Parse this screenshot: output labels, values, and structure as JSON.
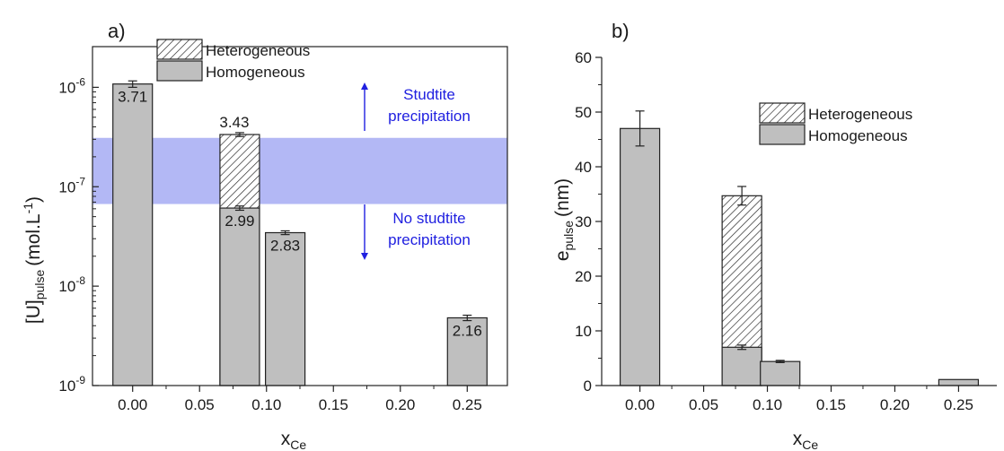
{
  "chart_data": [
    {
      "type": "bar",
      "panel_label": "a)",
      "xlabel": "x",
      "xlabel_sub": "Ce",
      "ylabel": "[U]",
      "ylabel_sub": "pulse",
      "ylabel_unit": "(mol.L",
      "ylabel_unit_sup": "-1",
      "ylabel_unit_close": ")",
      "yscale": "log",
      "xlim": [
        -0.03,
        0.28
      ],
      "ylim": [
        1e-09,
        2e-06
      ],
      "xticks": [
        0.0,
        0.05,
        0.1,
        0.15,
        0.2,
        0.25
      ],
      "xtick_labels": [
        "0.00",
        "0.05",
        "0.10",
        "0.15",
        "0.20",
        "0.25"
      ],
      "yticks": [
        {
          "base": "10",
          "exp": "-9",
          "value": 1e-09
        },
        {
          "base": "10",
          "exp": "-8",
          "value": 1e-08
        },
        {
          "base": "10",
          "exp": "-7",
          "value": 1e-07
        },
        {
          "base": "10",
          "exp": "-6",
          "value": 1e-06
        }
      ],
      "series": [
        {
          "name": "Homogeneous",
          "pattern": "solid",
          "fill": "#bfbfbf",
          "points": [
            {
              "x": 0.0,
              "y": 1.08e-06,
              "err": 8e-08,
              "label": "3.71"
            },
            {
              "x": 0.08,
              "y": 6.1e-08,
              "err": 3e-09,
              "label": "2.99"
            },
            {
              "x": 0.114,
              "y": 3.45e-08,
              "err": 1.5e-09,
              "label": "2.83"
            },
            {
              "x": 0.25,
              "y": 4.8e-09,
              "err": 3e-10,
              "label": "2.16"
            }
          ]
        },
        {
          "name": "Heterogeneous",
          "pattern": "hatched",
          "fill": "#ffffff",
          "points": [
            {
              "x": 0.08,
              "y": 3.35e-07,
              "err": 1.5e-08,
              "label": "3.43"
            }
          ]
        }
      ],
      "band": {
        "y_low": 6.7e-08,
        "y_high": 3.1e-07,
        "color": "#b3b8f5"
      },
      "annotations": [
        {
          "id": "above",
          "lines": [
            "Studtite",
            "precipitation"
          ],
          "color": "#2020e0",
          "arrow": "up"
        },
        {
          "id": "below",
          "lines": [
            "No studtite",
            "precipitation"
          ],
          "color": "#2020e0",
          "arrow": "down"
        }
      ]
    },
    {
      "type": "bar",
      "panel_label": "b)",
      "xlabel": "x",
      "xlabel_sub": "Ce",
      "ylabel": "e",
      "ylabel_sub": "pulse",
      "ylabel_unit": "(nm)",
      "yscale": "linear",
      "xlim": [
        -0.03,
        0.28
      ],
      "ylim": [
        0,
        60
      ],
      "xticks": [
        0.0,
        0.05,
        0.1,
        0.15,
        0.2,
        0.25
      ],
      "xtick_labels": [
        "0.00",
        "0.05",
        "0.10",
        "0.15",
        "0.20",
        "0.25"
      ],
      "yticks": [
        0,
        10,
        20,
        30,
        40,
        50,
        60
      ],
      "ytick_labels": [
        "0",
        "10",
        "20",
        "30",
        "40",
        "50",
        "60"
      ],
      "series": [
        {
          "name": "Homogeneous",
          "pattern": "solid",
          "fill": "#bfbfbf",
          "points": [
            {
              "x": 0.0,
              "y": 47.0,
              "err": 3.2
            },
            {
              "x": 0.08,
              "y": 7.0,
              "err": 0.4
            },
            {
              "x": 0.11,
              "y": 4.4,
              "err": 0.2
            },
            {
              "x": 0.25,
              "y": 1.1,
              "err": 0
            }
          ]
        },
        {
          "name": "Heterogeneous",
          "pattern": "hatched",
          "fill": "#ffffff",
          "points": [
            {
              "x": 0.08,
              "y": 34.7,
              "err": 1.7
            }
          ]
        }
      ]
    }
  ]
}
